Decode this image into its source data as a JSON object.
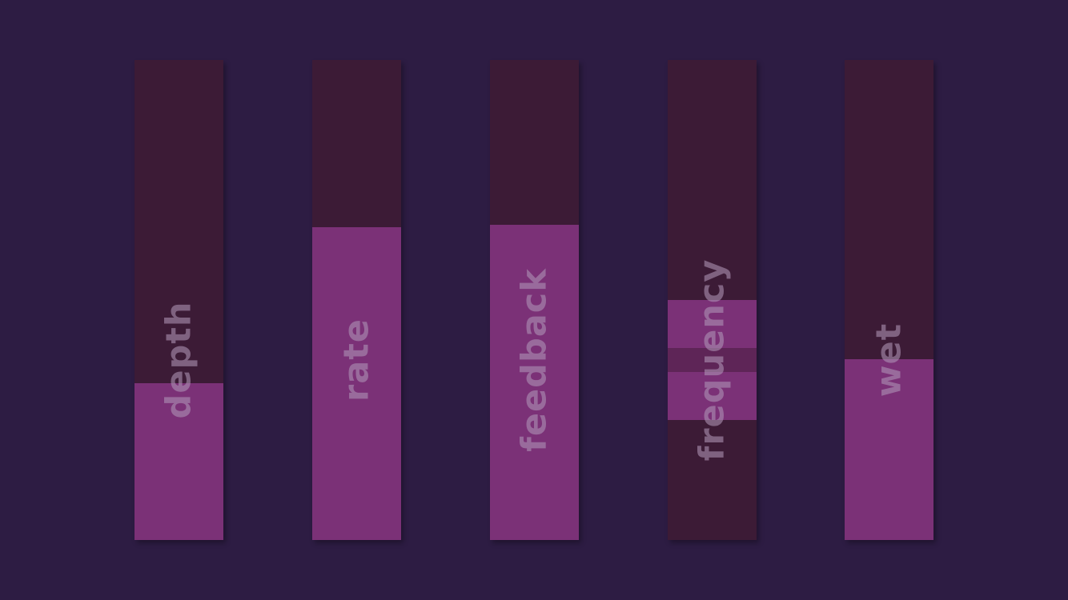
{
  "colors": {
    "background": "#2d1c43",
    "track": "#3c1b36",
    "fill": "#7b3177",
    "band_marker": "#5e2557",
    "label": "#af96b6"
  },
  "faders": [
    {
      "id": "depth",
      "label": "depth",
      "mode": "level",
      "value": 0.327
    },
    {
      "id": "rate",
      "label": "rate",
      "mode": "level",
      "value": 0.652
    },
    {
      "id": "feedback",
      "label": "feedback",
      "mode": "level",
      "value": 0.657
    },
    {
      "id": "frequency",
      "label": "frequency",
      "mode": "band",
      "band_low": 0.25,
      "band_high": 0.5,
      "band_center": 0.375
    },
    {
      "id": "wet",
      "label": "wet",
      "mode": "level",
      "value": 0.377
    }
  ]
}
